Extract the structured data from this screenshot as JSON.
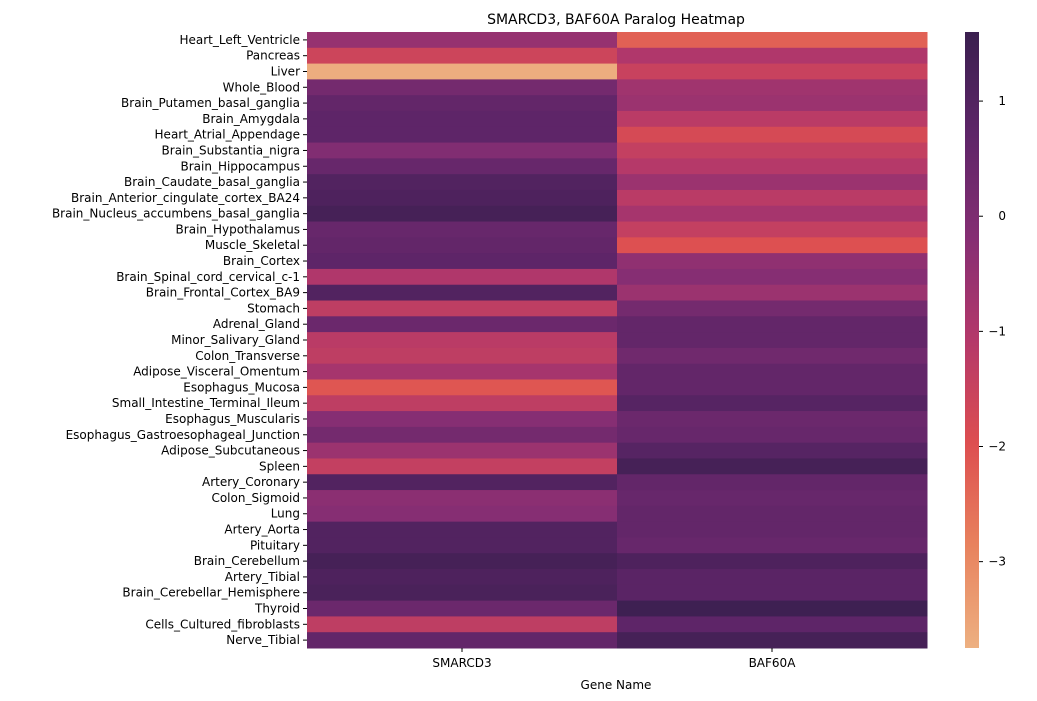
{
  "chart_data": {
    "type": "heatmap",
    "title": "SMARCD3, BAF60A Paralog Heatmap",
    "xlabel": "Gene Name",
    "ylabel": "",
    "columns": [
      "SMARCD3",
      "BAF60A"
    ],
    "rows": [
      "Heart_Left_Ventricle",
      "Pancreas",
      "Liver",
      "Whole_Blood",
      "Brain_Putamen_basal_ganglia",
      "Brain_Amygdala",
      "Heart_Atrial_Appendage",
      "Brain_Substantia_nigra",
      "Brain_Hippocampus",
      "Brain_Caudate_basal_ganglia",
      "Brain_Anterior_cingulate_cortex_BA24",
      "Brain_Nucleus_accumbens_basal_ganglia",
      "Brain_Hypothalamus",
      "Muscle_Skeletal",
      "Brain_Cortex",
      "Brain_Spinal_cord_cervical_c-1",
      "Brain_Frontal_Cortex_BA9",
      "Stomach",
      "Adrenal_Gland",
      "Minor_Salivary_Gland",
      "Colon_Transverse",
      "Adipose_Visceral_Omentum",
      "Esophagus_Mucosa",
      "Small_Intestine_Terminal_Ileum",
      "Esophagus_Muscularis",
      "Esophagus_Gastroesophageal_Junction",
      "Adipose_Subcutaneous",
      "Spleen",
      "Artery_Coronary",
      "Colon_Sigmoid",
      "Lung",
      "Artery_Aorta",
      "Pituitary",
      "Brain_Cerebellum",
      "Artery_Tibial",
      "Brain_Cerebellar_Hemisphere",
      "Thyroid",
      "Cells_Cultured_fibroblasts",
      "Nerve_Tibial"
    ],
    "values": [
      [
        -0.5,
        -2.3
      ],
      [
        -1.6,
        -1.0
      ],
      [
        -3.7,
        -1.5
      ],
      [
        0.2,
        -0.7
      ],
      [
        0.6,
        -0.6
      ],
      [
        0.7,
        -1.2
      ],
      [
        0.7,
        -1.8
      ],
      [
        -0.1,
        -1.4
      ],
      [
        0.5,
        -1.1
      ],
      [
        1.0,
        -0.6
      ],
      [
        1.1,
        -1.2
      ],
      [
        1.3,
        -0.8
      ],
      [
        0.5,
        -1.4
      ],
      [
        0.6,
        -2.0
      ],
      [
        0.7,
        -0.4
      ],
      [
        -1.0,
        -0.2
      ],
      [
        1.0,
        -0.6
      ],
      [
        -1.3,
        0.2
      ],
      [
        0.4,
        0.6
      ],
      [
        -1.2,
        0.6
      ],
      [
        -1.3,
        0.3
      ],
      [
        -0.8,
        0.6
      ],
      [
        -2.1,
        0.6
      ],
      [
        -1.3,
        0.9
      ],
      [
        -0.2,
        0.4
      ],
      [
        0.2,
        0.5
      ],
      [
        -0.6,
        0.9
      ],
      [
        -1.4,
        1.3
      ],
      [
        1.0,
        0.6
      ],
      [
        -0.3,
        0.5
      ],
      [
        -0.2,
        0.6
      ],
      [
        1.0,
        0.6
      ],
      [
        1.0,
        0.5
      ],
      [
        1.3,
        1.1
      ],
      [
        1.1,
        0.8
      ],
      [
        1.2,
        0.8
      ],
      [
        0.4,
        1.5
      ],
      [
        -1.3,
        0.7
      ],
      [
        0.6,
        1.3
      ]
    ],
    "vmin": -3.75,
    "vmax": 1.6,
    "colorbar_ticks": [
      1,
      0,
      -1,
      -2,
      -3
    ],
    "colormap": [
      "#edb081",
      "#e8825e",
      "#dd4e50",
      "#b4386a",
      "#852e73",
      "#5e2568",
      "#3a1f4f"
    ],
    "legend": "colorbar-right"
  }
}
